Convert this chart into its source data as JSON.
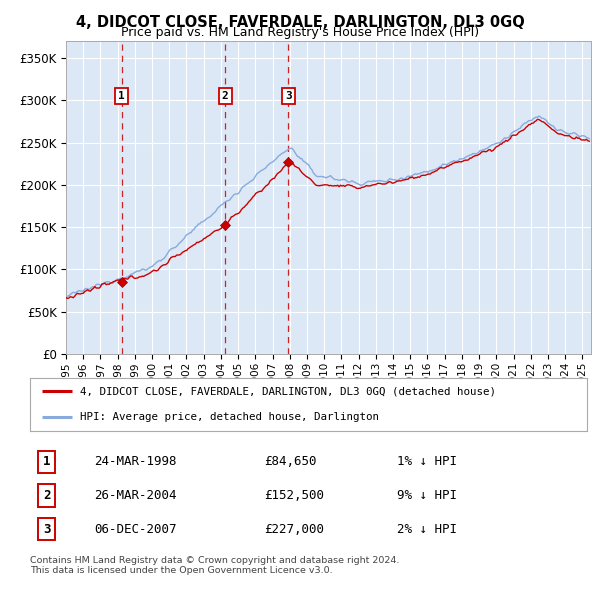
{
  "title": "4, DIDCOT CLOSE, FAVERDALE, DARLINGTON, DL3 0GQ",
  "subtitle": "Price paid vs. HM Land Registry's House Price Index (HPI)",
  "ytick_values": [
    0,
    50000,
    100000,
    150000,
    200000,
    250000,
    300000,
    350000
  ],
  "ylim": [
    0,
    370000
  ],
  "transactions": [
    {
      "date": "1998-03-24",
      "price": 84650,
      "label": "1",
      "x": 1998.23
    },
    {
      "date": "2004-03-26",
      "price": 152500,
      "label": "2",
      "x": 2004.24
    },
    {
      "date": "2007-12-06",
      "price": 227000,
      "label": "3",
      "x": 2007.92
    }
  ],
  "transaction_table": [
    {
      "num": "1",
      "date": "24-MAR-1998",
      "price": "£84,650",
      "pct": "1% ↓ HPI"
    },
    {
      "num": "2",
      "date": "26-MAR-2004",
      "price": "£152,500",
      "pct": "9% ↓ HPI"
    },
    {
      "num": "3",
      "date": "06-DEC-2007",
      "price": "£227,000",
      "pct": "2% ↓ HPI"
    }
  ],
  "legend_house": "4, DIDCOT CLOSE, FAVERDALE, DARLINGTON, DL3 0GQ (detached house)",
  "legend_hpi": "HPI: Average price, detached house, Darlington",
  "footnote1": "Contains HM Land Registry data © Crown copyright and database right 2024.",
  "footnote2": "This data is licensed under the Open Government Licence v3.0.",
  "house_color": "#cc0000",
  "hpi_color": "#88aadd",
  "grid_color": "#cccccc",
  "bg_color": "#ffffff",
  "plot_bg_color": "#dce8f5",
  "dashed_color": "#cc0000",
  "xmin": 1995.0,
  "xmax": 2025.5,
  "xticks": [
    1995,
    1996,
    1997,
    1998,
    1999,
    2000,
    2001,
    2002,
    2003,
    2004,
    2005,
    2006,
    2007,
    2008,
    2009,
    2010,
    2011,
    2012,
    2013,
    2014,
    2015,
    2016,
    2017,
    2018,
    2019,
    2020,
    2021,
    2022,
    2023,
    2024,
    2025
  ]
}
